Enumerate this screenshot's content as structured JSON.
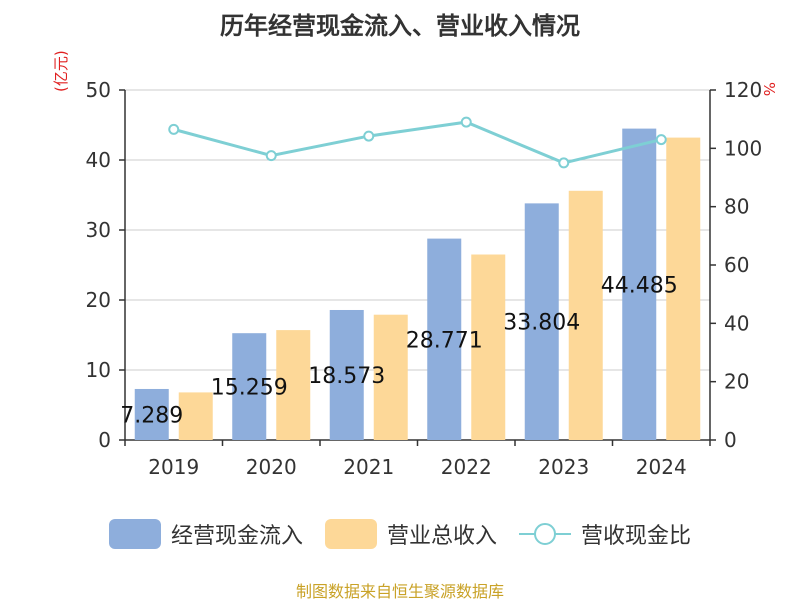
{
  "chart_data": {
    "type": "bar",
    "title": "历年经营现金流入、营业收入情况",
    "categories": [
      "2019",
      "2020",
      "2021",
      "2022",
      "2023",
      "2024"
    ],
    "y_left": {
      "unit": "(亿元)",
      "range": [
        0,
        50
      ],
      "ticks": [
        "0",
        "10",
        "20",
        "30",
        "40",
        "50"
      ]
    },
    "y_right": {
      "unit": "%",
      "range": [
        0,
        120
      ],
      "ticks": [
        "0",
        "20",
        "40",
        "60",
        "80",
        "100",
        "120"
      ]
    },
    "series": [
      {
        "name": "经营现金流入",
        "type": "bar",
        "axis": "left",
        "color": "#8eaedc",
        "values": [
          7.289,
          15.259,
          18.573,
          28.771,
          33.804,
          44.485
        ],
        "labels": [
          "7.289",
          "15.259",
          "18.573",
          "28.771",
          "33.804",
          "44.485"
        ]
      },
      {
        "name": "营业总收入",
        "type": "bar",
        "axis": "left",
        "color": "#fdd898",
        "values": [
          6.8,
          15.7,
          17.9,
          26.5,
          35.6,
          43.2
        ]
      },
      {
        "name": "营收现金比",
        "type": "line",
        "axis": "right",
        "color": "#7ecfd4",
        "values": [
          106.5,
          97.5,
          104.2,
          109.0,
          95.0,
          103.0
        ]
      }
    ],
    "grid": true,
    "legend_position": "bottom"
  },
  "source": "制图数据来自恒生聚源数据库"
}
